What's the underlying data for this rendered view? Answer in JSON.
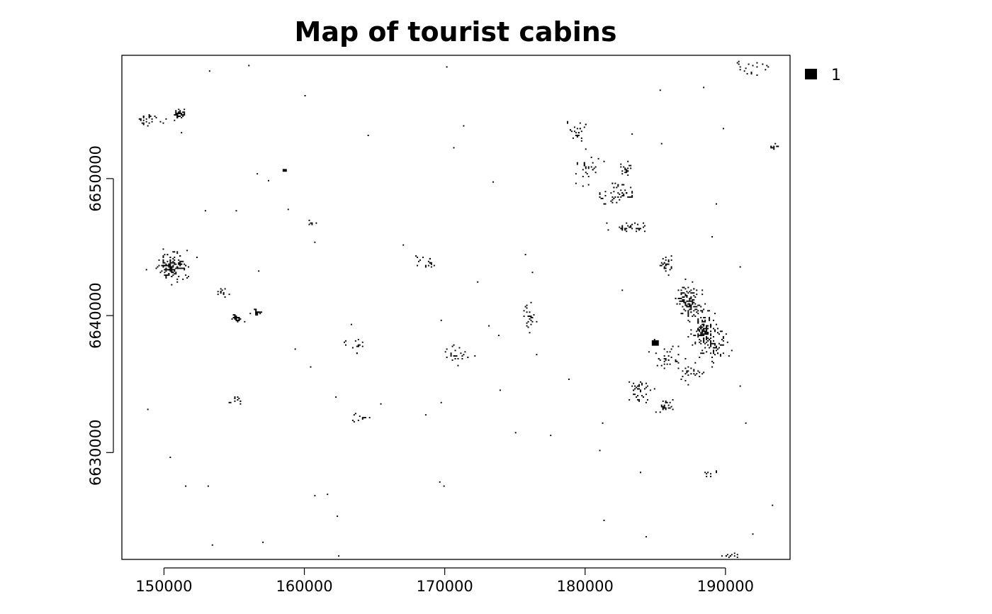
{
  "chart_data": {
    "type": "raster",
    "title": "Map of tourist cabins",
    "xlabel": "",
    "ylabel": "",
    "xlim": [
      147000,
      194600
    ],
    "ylim": [
      6622200,
      6659000
    ],
    "x_ticks": [
      {
        "value": 150000,
        "label": "150000"
      },
      {
        "value": 160000,
        "label": "160000"
      },
      {
        "value": 170000,
        "label": "170000"
      },
      {
        "value": 180000,
        "label": "180000"
      },
      {
        "value": 190000,
        "label": "190000"
      }
    ],
    "y_ticks": [
      {
        "value": 6630000,
        "label": "6630000"
      },
      {
        "value": 6640000,
        "label": "6640000"
      },
      {
        "value": 6650000,
        "label": "6650000"
      }
    ],
    "grid": false,
    "legend": {
      "placement": "top-right",
      "entries": [
        {
          "label": "1",
          "color": "#000000"
        }
      ]
    },
    "cell_value": 1,
    "cell_size_m": 100,
    "clusters": [
      {
        "x": 150600,
        "y": 6643600,
        "sx": 800,
        "sy": 900,
        "n": 140
      },
      {
        "x": 151100,
        "y": 6654700,
        "sx": 300,
        "sy": 250,
        "n": 45
      },
      {
        "x": 148800,
        "y": 6654300,
        "sx": 700,
        "sy": 350,
        "n": 25
      },
      {
        "x": 155200,
        "y": 6639800,
        "sx": 250,
        "sy": 300,
        "n": 25
      },
      {
        "x": 156600,
        "y": 6640200,
        "sx": 350,
        "sy": 200,
        "n": 20
      },
      {
        "x": 154200,
        "y": 6641700,
        "sx": 250,
        "sy": 250,
        "n": 12
      },
      {
        "x": 155200,
        "y": 6633800,
        "sx": 400,
        "sy": 300,
        "n": 12
      },
      {
        "x": 168700,
        "y": 6643800,
        "sx": 600,
        "sy": 500,
        "n": 20
      },
      {
        "x": 170700,
        "y": 6637200,
        "sx": 800,
        "sy": 600,
        "n": 25
      },
      {
        "x": 176000,
        "y": 6639800,
        "sx": 300,
        "sy": 800,
        "n": 25
      },
      {
        "x": 179500,
        "y": 6653500,
        "sx": 600,
        "sy": 700,
        "n": 25
      },
      {
        "x": 180300,
        "y": 6650800,
        "sx": 800,
        "sy": 800,
        "n": 30
      },
      {
        "x": 182300,
        "y": 6648900,
        "sx": 900,
        "sy": 800,
        "n": 55
      },
      {
        "x": 182900,
        "y": 6650700,
        "sx": 350,
        "sy": 400,
        "n": 20
      },
      {
        "x": 183200,
        "y": 6646400,
        "sx": 1100,
        "sy": 300,
        "n": 35
      },
      {
        "x": 185800,
        "y": 6643800,
        "sx": 400,
        "sy": 500,
        "n": 30
      },
      {
        "x": 187400,
        "y": 6641000,
        "sx": 700,
        "sy": 1000,
        "n": 120
      },
      {
        "x": 188500,
        "y": 6639000,
        "sx": 700,
        "sy": 1200,
        "n": 130
      },
      {
        "x": 189200,
        "y": 6637800,
        "sx": 700,
        "sy": 900,
        "n": 60
      },
      {
        "x": 186000,
        "y": 6636800,
        "sx": 1000,
        "sy": 900,
        "n": 35
      },
      {
        "x": 187600,
        "y": 6635800,
        "sx": 600,
        "sy": 500,
        "n": 25
      },
      {
        "x": 183900,
        "y": 6634500,
        "sx": 500,
        "sy": 700,
        "n": 40
      },
      {
        "x": 185800,
        "y": 6633400,
        "sx": 500,
        "sy": 400,
        "n": 25
      },
      {
        "x": 192000,
        "y": 6658000,
        "sx": 1200,
        "sy": 500,
        "n": 20
      },
      {
        "x": 193500,
        "y": 6652200,
        "sx": 250,
        "sy": 300,
        "n": 10
      },
      {
        "x": 190300,
        "y": 6622500,
        "sx": 500,
        "sy": 150,
        "n": 12
      },
      {
        "x": 189000,
        "y": 6628500,
        "sx": 400,
        "sy": 300,
        "n": 8
      },
      {
        "x": 160400,
        "y": 6646800,
        "sx": 400,
        "sy": 300,
        "n": 6
      },
      {
        "x": 164000,
        "y": 6632500,
        "sx": 600,
        "sy": 400,
        "n": 12
      },
      {
        "x": 163600,
        "y": 6637700,
        "sx": 800,
        "sy": 500,
        "n": 15
      }
    ],
    "solid_blocks": [
      {
        "x": 185000,
        "y": 6638000,
        "w": 500,
        "h": 400
      },
      {
        "x": 158600,
        "y": 6650600,
        "w": 300,
        "h": 200
      }
    ],
    "scatter_density": 0.035
  }
}
